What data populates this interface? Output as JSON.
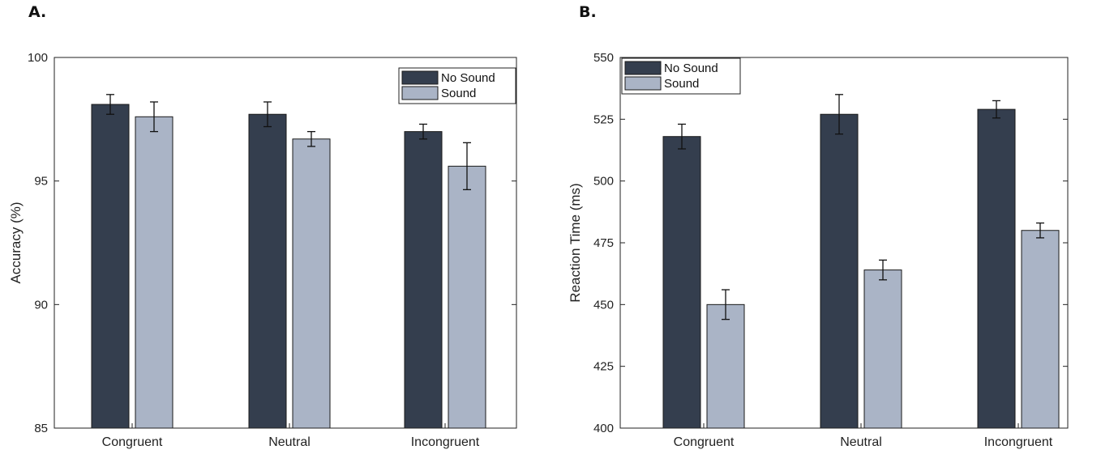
{
  "panels": [
    {
      "letter": "A."
    },
    {
      "letter": "B."
    }
  ],
  "colors": {
    "no_sound": "#343e4e",
    "sound": "#aab4c6",
    "axis": "#222222"
  },
  "chart_data": [
    {
      "type": "bar",
      "title": "",
      "xlabel": "",
      "ylabel": "Accuracy (%)",
      "ylim": [
        85,
        100
      ],
      "yticks": [
        85,
        90,
        95,
        100
      ],
      "categories": [
        "Congruent",
        "Neutral",
        "Incongruent"
      ],
      "series": [
        {
          "name": "No Sound",
          "values": [
            98.1,
            97.7,
            97.0
          ],
          "errors": [
            0.4,
            0.5,
            0.3
          ]
        },
        {
          "name": "Sound",
          "values": [
            97.6,
            96.7,
            95.6
          ],
          "errors": [
            0.6,
            0.3,
            0.95
          ]
        }
      ],
      "legend_position": "top-right"
    },
    {
      "type": "bar",
      "title": "",
      "xlabel": "",
      "ylabel": "Reaction Time (ms)",
      "ylim": [
        400,
        550
      ],
      "yticks": [
        400,
        425,
        450,
        475,
        500,
        525,
        550
      ],
      "categories": [
        "Congruent",
        "Neutral",
        "Incongruent"
      ],
      "series": [
        {
          "name": "No Sound",
          "values": [
            518,
            527,
            529
          ],
          "errors": [
            5,
            8,
            3.5
          ]
        },
        {
          "name": "Sound",
          "values": [
            450,
            464,
            480
          ],
          "errors": [
            6,
            4,
            3
          ]
        }
      ],
      "legend_position": "top-left"
    }
  ]
}
